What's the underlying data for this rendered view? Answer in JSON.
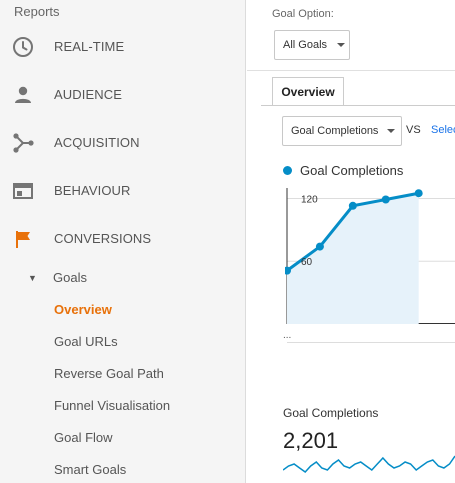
{
  "sidebar": {
    "reports_label": "Reports",
    "items": [
      {
        "label": "REAL-TIME",
        "icon": "clock-icon"
      },
      {
        "label": "AUDIENCE",
        "icon": "person-icon"
      },
      {
        "label": "ACQUISITION",
        "icon": "acquisition-icon"
      },
      {
        "label": "BEHAVIOUR",
        "icon": "behaviour-icon"
      },
      {
        "label": "CONVERSIONS",
        "icon": "flag-icon",
        "icon_color": "#e8710a"
      }
    ],
    "goals": {
      "label": "Goals",
      "items": [
        {
          "label": "Overview",
          "active": true
        },
        {
          "label": "Goal URLs"
        },
        {
          "label": "Reverse Goal Path"
        },
        {
          "label": "Funnel Visualisation"
        },
        {
          "label": "Goal Flow"
        },
        {
          "label": "Smart Goals"
        }
      ]
    }
  },
  "main": {
    "goal_option_label": "Goal Option:",
    "goal_option_value": "All Goals",
    "tab_overview": "Overview",
    "metric_select": "Goal Completions",
    "vs_label": "VS",
    "select_link": "Selec",
    "legend_label": "Goal Completions",
    "ellipsis": "...",
    "summary_label": "Goal Completions",
    "summary_value": "2,201"
  },
  "colors": {
    "accent": "#e8710a",
    "series": "#058dc7",
    "area_fill": "#e6f2fa",
    "link": "#1a73e8"
  },
  "chart_data": {
    "type": "line",
    "series": [
      {
        "name": "Goal Completions",
        "values": [
          51,
          74,
          113,
          119,
          125
        ]
      }
    ],
    "y_ticks": [
      "120",
      "60"
    ],
    "ylim": [
      0,
      130
    ],
    "grid": true
  },
  "sparkline_data": {
    "values": [
      6,
      8,
      9,
      7,
      5,
      8,
      10,
      7,
      6,
      9,
      11,
      8,
      7,
      9,
      10,
      8,
      6,
      9,
      12,
      9,
      7,
      8,
      10,
      9,
      6,
      8,
      10,
      11,
      8,
      7,
      9,
      13
    ]
  }
}
